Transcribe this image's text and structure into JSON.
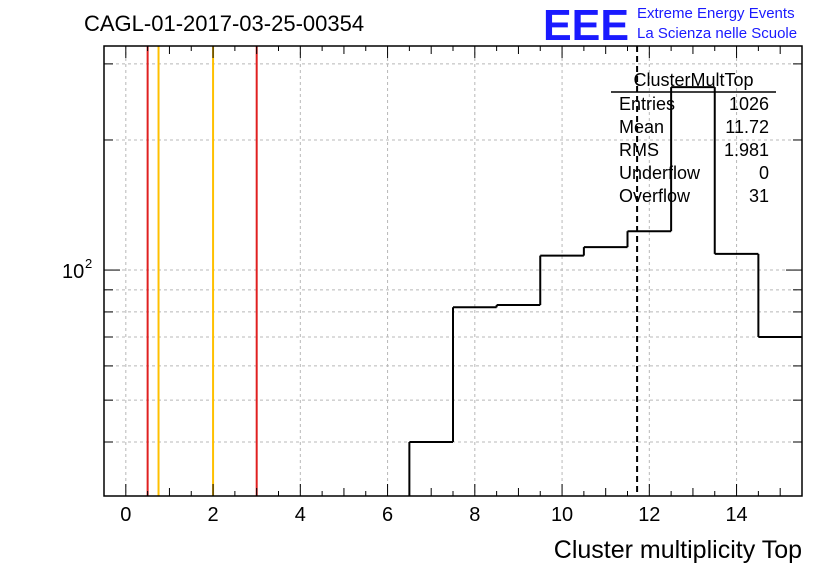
{
  "chart_data": {
    "type": "bar",
    "title": "CAGL-01-2017-03-25-00354",
    "xlabel": "Cluster multiplicity Top",
    "ylabel": "",
    "xlim": [
      -0.5,
      15.5
    ],
    "ylim": [
      30,
      330
    ],
    "yscale": "log",
    "grid": true,
    "x_ticks": [
      0,
      2,
      4,
      6,
      8,
      10,
      12,
      14
    ],
    "y_tick_labels": [
      {
        "base": "10",
        "exp": "2",
        "value": 100
      }
    ],
    "histogram": {
      "bin_edges": [
        6.5,
        7.5,
        8.5,
        9.5,
        10.5,
        11.5,
        12.5,
        13.5,
        14.5,
        15.5
      ],
      "counts": [
        40,
        82,
        83,
        108,
        113,
        123,
        265,
        109,
        70
      ]
    },
    "vertical_lines": [
      {
        "x": 0.5,
        "color": "#e02020",
        "style": "solid"
      },
      {
        "x": 0.75,
        "color": "#ffc000",
        "style": "solid"
      },
      {
        "x": 2.0,
        "color": "#ffc000",
        "style": "solid"
      },
      {
        "x": 3.0,
        "color": "#e02020",
        "style": "solid"
      },
      {
        "x": 11.72,
        "color": "#000000",
        "style": "dashed"
      }
    ],
    "stats_box": {
      "title": "ClusterMultTop",
      "rows": [
        {
          "label": "Entries",
          "value": "1026"
        },
        {
          "label": "Mean",
          "value": "11.72"
        },
        {
          "label": "RMS",
          "value": "1.981"
        },
        {
          "label": "Underflow",
          "value": "0"
        },
        {
          "label": "Overflow",
          "value": "31"
        }
      ]
    }
  },
  "logo": {
    "mark": "EEE",
    "line1": "Extreme Energy Events",
    "line2": "La Scienza nelle Scuole"
  }
}
